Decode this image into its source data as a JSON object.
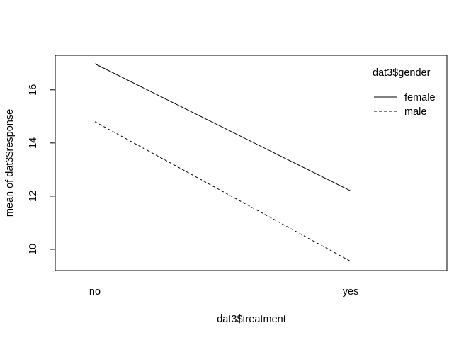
{
  "chart_data": {
    "type": "line",
    "title": "",
    "xlabel": "dat3$treatment",
    "ylabel": "mean of  dat3$response",
    "categories": [
      "no",
      "yes"
    ],
    "ylim": [
      9.2,
      17.3
    ],
    "yticks": [
      10,
      12,
      14,
      16
    ],
    "grid": false,
    "legend": {
      "title": "dat3$gender",
      "position": "top-right",
      "entries": [
        {
          "label": "female",
          "linestyle": "solid"
        },
        {
          "label": "male",
          "linestyle": "dashed"
        }
      ]
    },
    "series": [
      {
        "name": "female",
        "linestyle": "solid",
        "color": "#000000",
        "values": [
          16.98,
          12.2
        ]
      },
      {
        "name": "male",
        "linestyle": "dashed",
        "color": "#000000",
        "values": [
          14.8,
          9.55
        ]
      }
    ]
  }
}
